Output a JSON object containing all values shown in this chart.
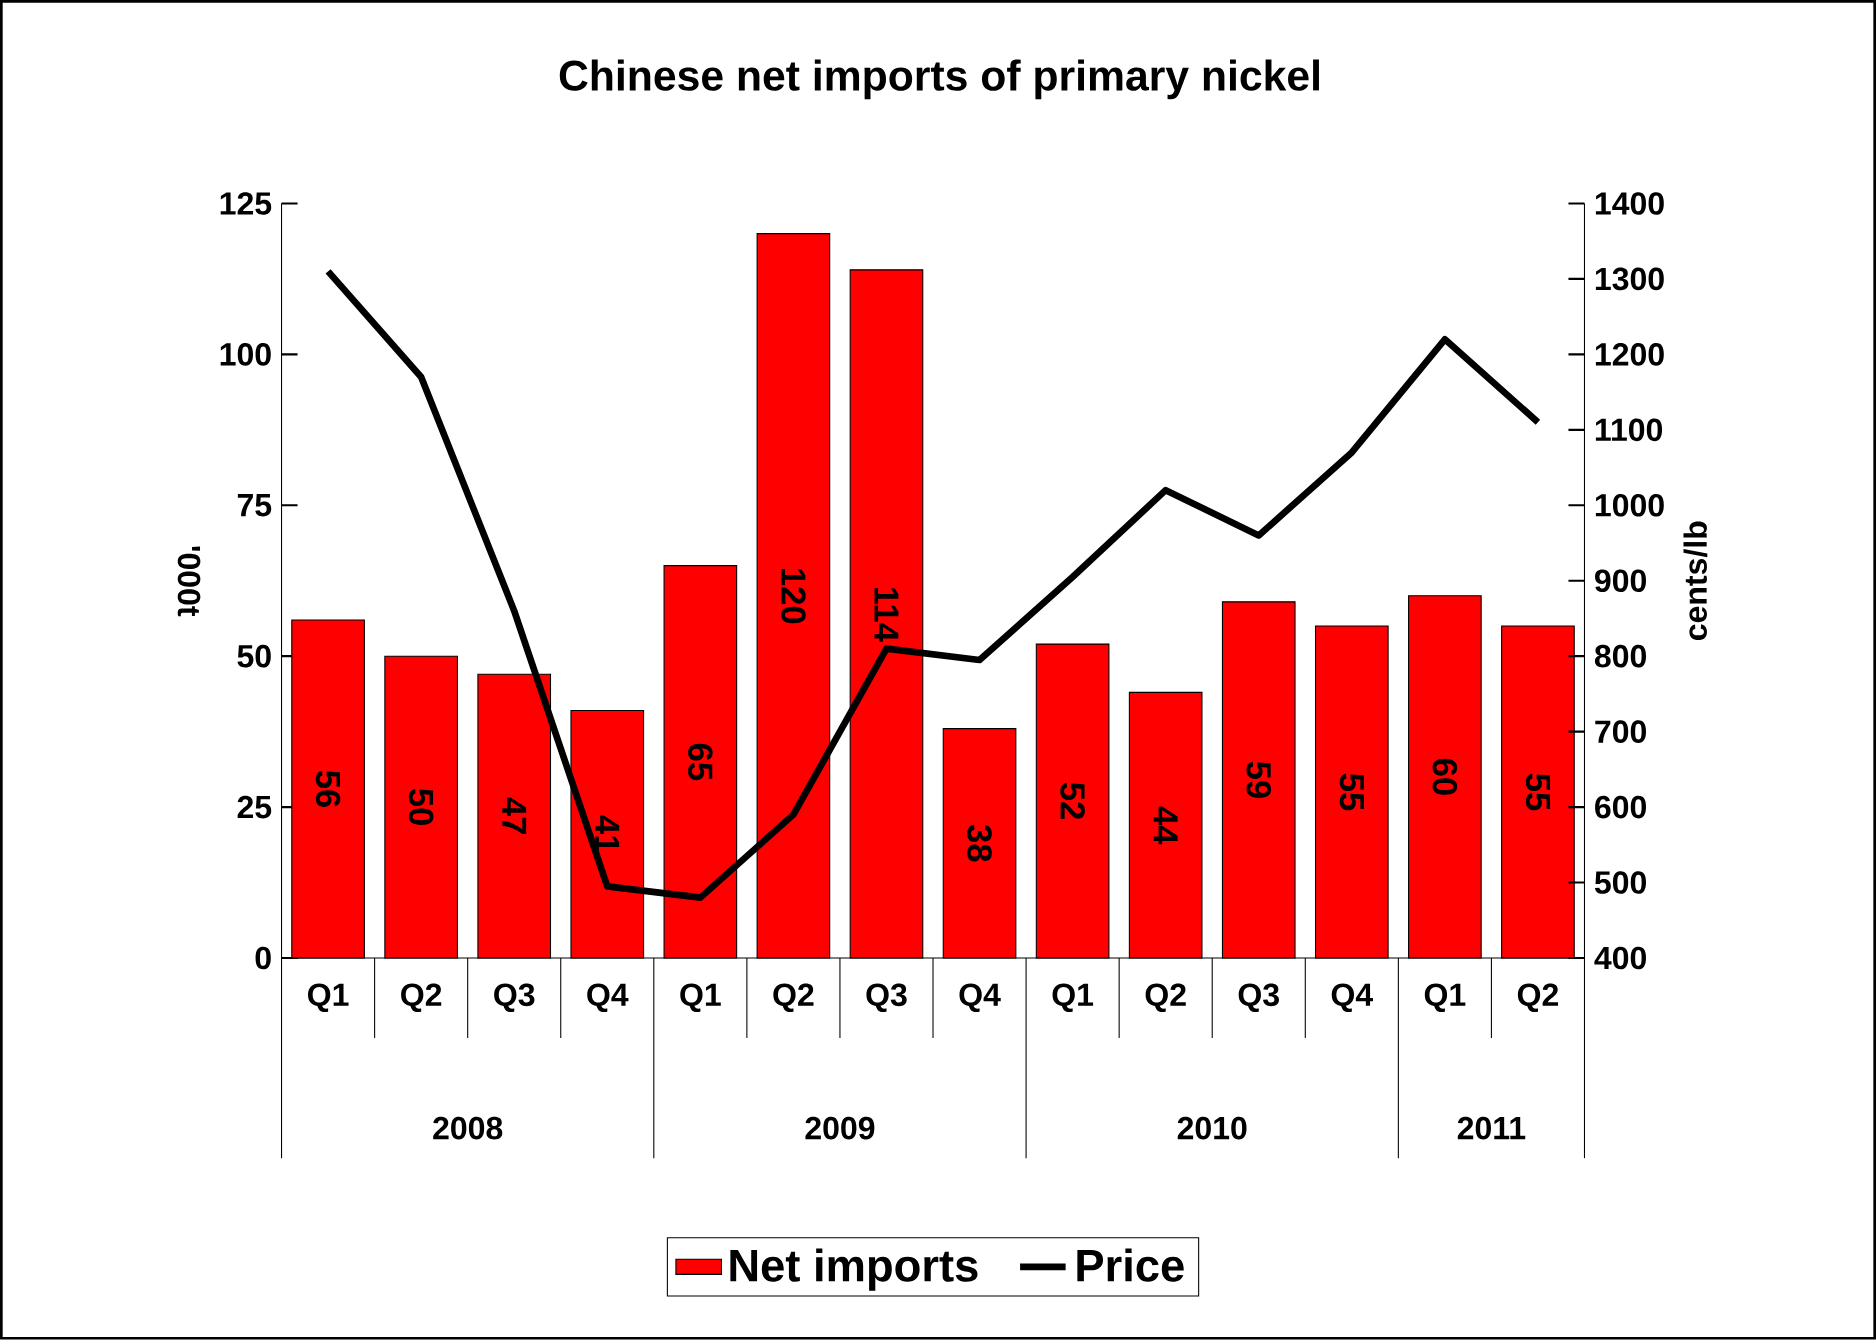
{
  "chart_data": {
    "type": "bar",
    "title": "Chinese net imports of primary nickel",
    "ylabel": "'000t",
    "y2label": "cents/lb",
    "categories": [
      "Q1",
      "Q2",
      "Q3",
      "Q4",
      "Q1",
      "Q2",
      "Q3",
      "Q4",
      "Q1",
      "Q2",
      "Q3",
      "Q4",
      "Q1",
      "Q2"
    ],
    "series": [
      {
        "name": "Net imports",
        "color": "#ff0000",
        "values": [
          56,
          50,
          47,
          41,
          65,
          120,
          114,
          38,
          52,
          44,
          59,
          55,
          60,
          55
        ],
        "value_labels": [
          "56",
          "50",
          "47",
          "41",
          "65",
          "120",
          "114",
          "38",
          "52",
          "44",
          "59",
          "55",
          "60",
          "55"
        ]
      },
      {
        "name": "Price",
        "type": "line",
        "axis": "y2",
        "color": "#000000",
        "values": [
          1310,
          1170,
          860,
          495,
          480,
          590,
          810,
          795,
          905,
          1020,
          960,
          1070,
          1220,
          1110
        ]
      }
    ],
    "ylim": [
      0,
      125
    ],
    "yticks": [
      0,
      25,
      50,
      75,
      100,
      125
    ],
    "y2lim": [
      400,
      1400
    ],
    "y2ticks": [
      400,
      500,
      600,
      700,
      800,
      900,
      1000,
      1100,
      1200,
      1300,
      1400
    ],
    "legend": "bottom",
    "grid": false,
    "annotations": [
      "2008",
      "2009",
      "2010",
      "2011"
    ]
  }
}
